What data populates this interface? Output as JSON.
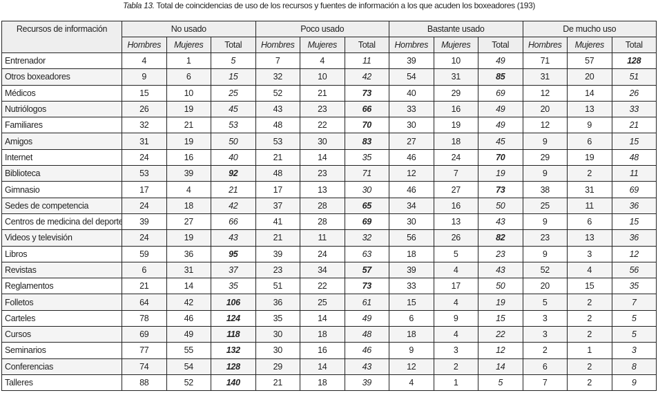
{
  "caption": {
    "label": "Tabla 13.",
    "text": " Total de coincidencias de uso de los recursos y fuentes de información a los que acuden los boxeadores (193)"
  },
  "header": {
    "resources": "Recursos de información",
    "groups": [
      "No usado",
      "Poco usado",
      "Bastante usado",
      "De mucho uso"
    ],
    "sub": [
      "Hombres",
      "Mujeres",
      "Total"
    ]
  },
  "rows": [
    {
      "name": "Entrenador",
      "values": [
        4,
        1,
        5,
        7,
        4,
        11,
        39,
        10,
        49,
        71,
        57,
        128
      ]
    },
    {
      "name": "Otros boxeadores",
      "values": [
        9,
        6,
        15,
        32,
        10,
        42,
        54,
        31,
        85,
        31,
        20,
        51
      ]
    },
    {
      "name": "Médicos",
      "values": [
        15,
        10,
        25,
        52,
        21,
        73,
        40,
        29,
        69,
        12,
        14,
        26
      ]
    },
    {
      "name": "Nutriólogos",
      "values": [
        26,
        19,
        45,
        43,
        23,
        66,
        33,
        16,
        49,
        20,
        13,
        33
      ]
    },
    {
      "name": "Familiares",
      "values": [
        32,
        21,
        53,
        48,
        22,
        70,
        30,
        19,
        49,
        12,
        9,
        21
      ]
    },
    {
      "name": "Amigos",
      "values": [
        31,
        19,
        50,
        53,
        30,
        83,
        27,
        18,
        45,
        9,
        6,
        15
      ]
    },
    {
      "name": "Internet",
      "values": [
        24,
        16,
        40,
        21,
        14,
        35,
        46,
        24,
        70,
        29,
        19,
        48
      ]
    },
    {
      "name": "Biblioteca",
      "values": [
        53,
        39,
        92,
        48,
        23,
        71,
        12,
        7,
        19,
        9,
        2,
        11
      ]
    },
    {
      "name": "Gimnasio",
      "values": [
        17,
        4,
        21,
        17,
        13,
        30,
        46,
        27,
        73,
        38,
        31,
        69
      ]
    },
    {
      "name": "Sedes de competencia",
      "values": [
        24,
        18,
        42,
        37,
        28,
        65,
        34,
        16,
        50,
        25,
        11,
        36
      ]
    },
    {
      "name": "Centros de medicina del deporte",
      "values": [
        39,
        27,
        66,
        41,
        28,
        69,
        30,
        13,
        43,
        9,
        6,
        15
      ]
    },
    {
      "name": "Videos y televisión",
      "values": [
        24,
        19,
        43,
        21,
        11,
        32,
        56,
        26,
        82,
        23,
        13,
        36
      ]
    },
    {
      "name": "Libros",
      "values": [
        59,
        36,
        95,
        39,
        24,
        63,
        18,
        5,
        23,
        9,
        3,
        12
      ]
    },
    {
      "name": "Revistas",
      "values": [
        6,
        31,
        37,
        23,
        34,
        57,
        39,
        4,
        43,
        52,
        4,
        56
      ]
    },
    {
      "name": "Reglamentos",
      "values": [
        21,
        14,
        35,
        51,
        22,
        73,
        33,
        17,
        50,
        20,
        15,
        35
      ]
    },
    {
      "name": "Folletos",
      "values": [
        64,
        42,
        106,
        36,
        25,
        61,
        15,
        4,
        19,
        5,
        2,
        7
      ]
    },
    {
      "name": "Carteles",
      "values": [
        78,
        46,
        124,
        35,
        14,
        49,
        6,
        9,
        15,
        3,
        2,
        5
      ]
    },
    {
      "name": "Cursos",
      "values": [
        69,
        49,
        118,
        30,
        18,
        48,
        18,
        4,
        22,
        3,
        2,
        5
      ]
    },
    {
      "name": "Seminarios",
      "values": [
        77,
        55,
        132,
        30,
        16,
        46,
        9,
        3,
        12,
        2,
        1,
        3
      ]
    },
    {
      "name": "Conferencias",
      "values": [
        74,
        54,
        128,
        29,
        14,
        43,
        12,
        2,
        14,
        6,
        2,
        8
      ]
    },
    {
      "name": "Talleres",
      "values": [
        88,
        52,
        140,
        21,
        18,
        39,
        4,
        1,
        5,
        7,
        2,
        9
      ]
    }
  ]
}
